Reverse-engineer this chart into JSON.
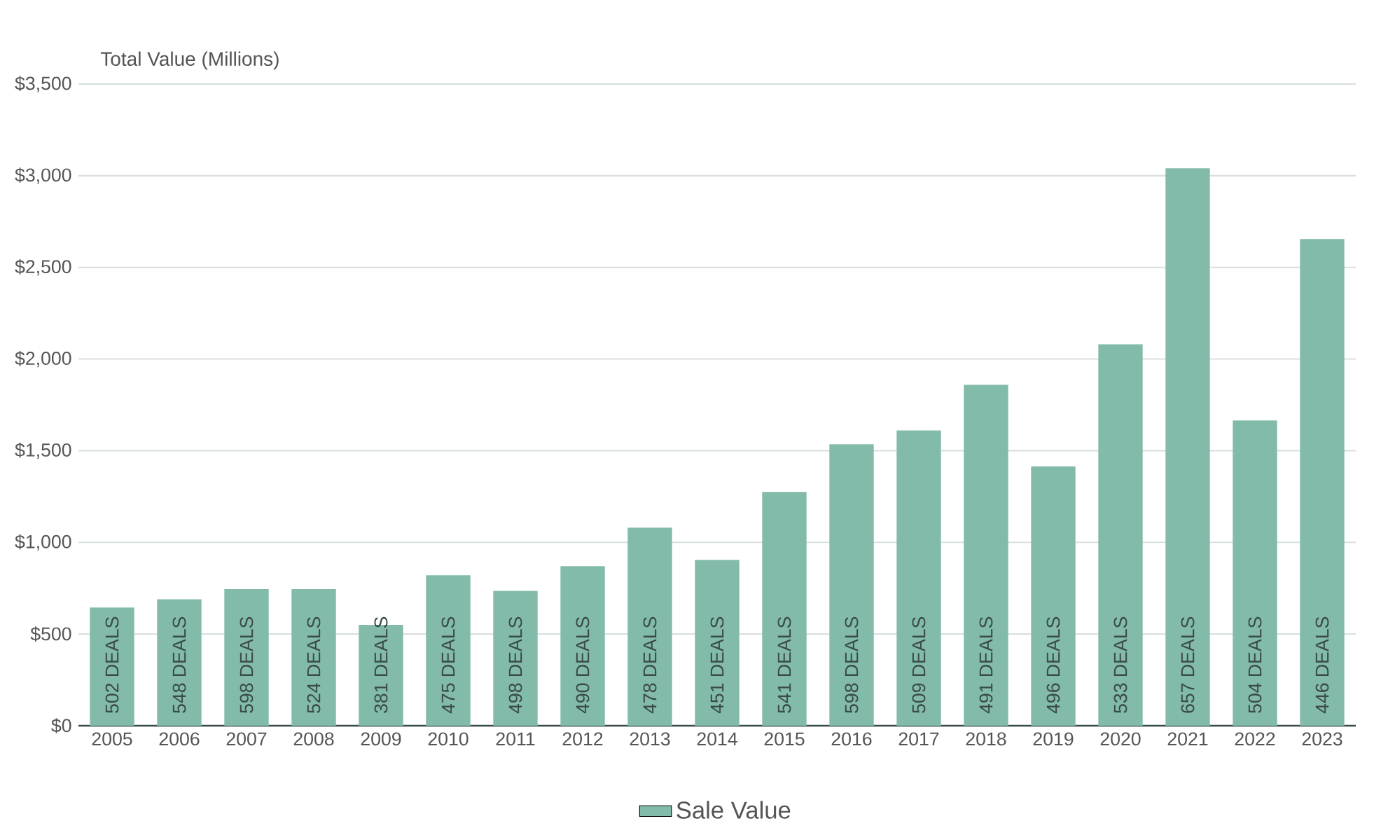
{
  "chart_data": {
    "type": "bar",
    "ylabel": "Total Value (Millions)",
    "categories": [
      "2005",
      "2006",
      "2007",
      "2008",
      "2009",
      "2010",
      "2011",
      "2012",
      "2013",
      "2014",
      "2015",
      "2016",
      "2017",
      "2018",
      "2019",
      "2020",
      "2021",
      "2022",
      "2023"
    ],
    "series": [
      {
        "name": "Sale Value",
        "color": "#82bbaa",
        "values": [
          645,
          690,
          745,
          745,
          550,
          820,
          735,
          870,
          1080,
          905,
          1275,
          1535,
          1610,
          1860,
          1415,
          2080,
          3040,
          1665,
          2655
        ]
      }
    ],
    "annotations": [
      "502 DEALS",
      "548 DEALS",
      "598 DEALS",
      "524 DEALS",
      "381 DEALS",
      "475 DEALS",
      "498 DEALS",
      "490 DEALS",
      "478 DEALS",
      "451 DEALS",
      "541 DEALS",
      "598 DEALS",
      "509 DEALS",
      "491 DEALS",
      "496 DEALS",
      "533 DEALS",
      "657 DEALS",
      "504 DEALS",
      "446 DEALS"
    ],
    "ylim": [
      0,
      3500
    ],
    "yticks": [
      {
        "value": 0,
        "label": "$0"
      },
      {
        "value": 500,
        "label": "$500"
      },
      {
        "value": 1000,
        "label": "$1,000"
      },
      {
        "value": 1500,
        "label": "$1,500"
      },
      {
        "value": 2000,
        "label": "$2,000"
      },
      {
        "value": 2500,
        "label": "$2,500"
      },
      {
        "value": 3000,
        "label": "$3,000"
      },
      {
        "value": 3500,
        "label": "$3,500"
      }
    ],
    "grid": "y",
    "legend": "bottom"
  }
}
